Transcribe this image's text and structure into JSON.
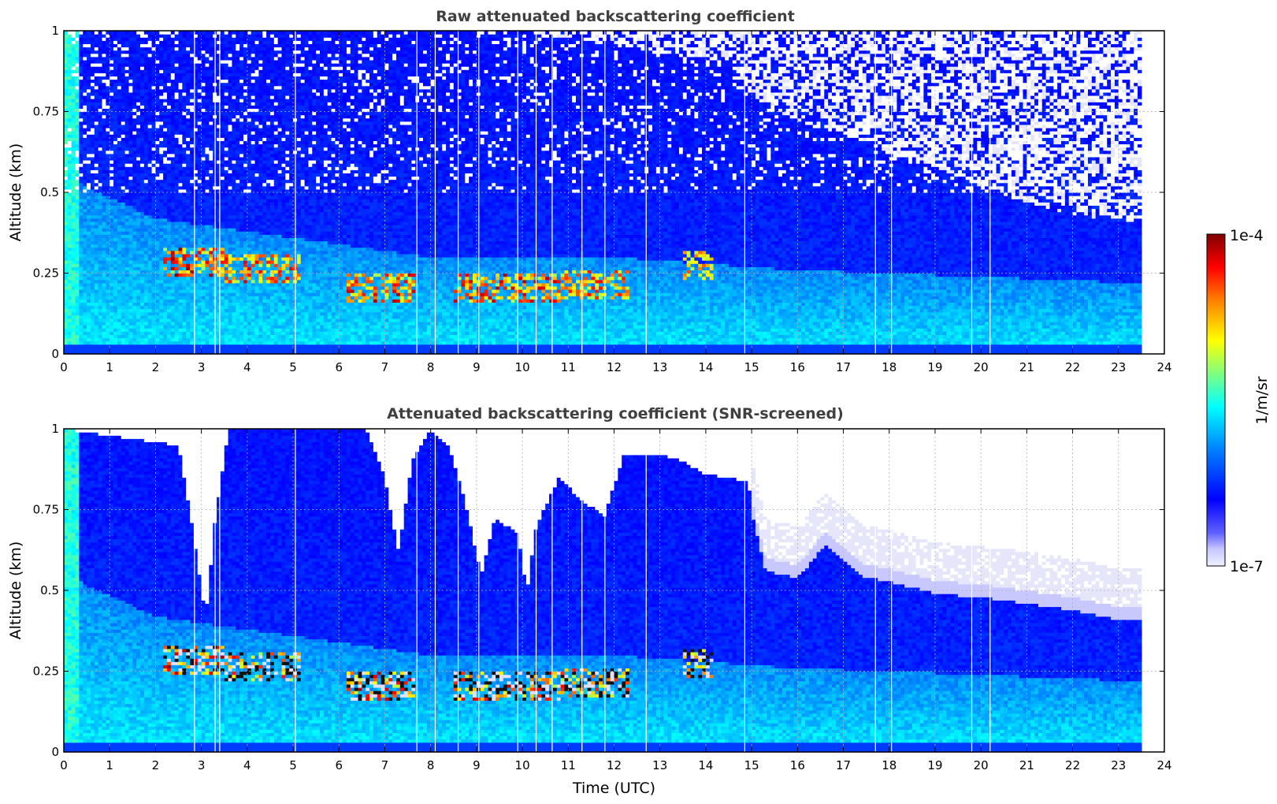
{
  "chart_data": [
    {
      "type": "heatmap",
      "title": "Raw attenuated backscattering coefficient",
      "xlabel": "",
      "ylabel": "Altitude (km)",
      "xlim": [
        0,
        24
      ],
      "ylim": [
        0,
        1
      ],
      "xticks": [
        0,
        1,
        2,
        3,
        4,
        5,
        6,
        7,
        8,
        9,
        10,
        11,
        12,
        13,
        14,
        15,
        16,
        17,
        18,
        19,
        20,
        21,
        22,
        23,
        24
      ],
      "yticks": [
        0,
        0.25,
        0.5,
        0.75,
        1
      ],
      "ytick_labels": [
        "0",
        "0.25",
        "0.5",
        "0.75",
        "1"
      ],
      "grid": true,
      "data_end_hour": 23.5,
      "noise_floor_top_km": [
        [
          0,
          1.0
        ],
        [
          10,
          1.0
        ],
        [
          14.5,
          0.9
        ],
        [
          15,
          0.8
        ],
        [
          16,
          0.72
        ],
        [
          17,
          0.68
        ],
        [
          18,
          0.62
        ],
        [
          19,
          0.58
        ],
        [
          20,
          0.52
        ],
        [
          21,
          0.47
        ],
        [
          22,
          0.43
        ],
        [
          23.5,
          0.41
        ]
      ],
      "aerosol_layer_top_km": [
        [
          0,
          0.55
        ],
        [
          2,
          0.42
        ],
        [
          4,
          0.38
        ],
        [
          6,
          0.34
        ],
        [
          8,
          0.3
        ],
        [
          10,
          0.3
        ],
        [
          12,
          0.3
        ],
        [
          14,
          0.28
        ],
        [
          16,
          0.26
        ],
        [
          18,
          0.25
        ],
        [
          20,
          0.24
        ],
        [
          23.5,
          0.22
        ]
      ],
      "strong_echo_layers": [
        {
          "start": 2.2,
          "end": 3.5,
          "altitude_km": 0.28,
          "level": 1.0
        },
        {
          "start": 3.5,
          "end": 5.2,
          "altitude_km": 0.26,
          "level": 0.8
        },
        {
          "start": 6.2,
          "end": 7.7,
          "altitude_km": 0.2,
          "level": 0.9
        },
        {
          "start": 8.5,
          "end": 10.8,
          "altitude_km": 0.2,
          "level": 0.9
        },
        {
          "start": 10.8,
          "end": 12.3,
          "altitude_km": 0.22,
          "level": 0.75
        },
        {
          "start": 13.5,
          "end": 14.2,
          "altitude_km": 0.27,
          "level": 0.6
        }
      ],
      "data_gaps_hour": [
        2.85,
        3.3,
        3.4,
        5.05,
        7.7,
        8.1,
        8.6,
        9.05,
        9.9,
        10.3,
        10.65,
        11.3,
        11.8,
        12.7,
        14.85,
        17.7,
        18.05,
        19.8,
        20.2
      ]
    },
    {
      "type": "heatmap",
      "title": "Attenuated backscattering coefficient (SNR-screened)",
      "xlabel": "Time (UTC)",
      "ylabel": "Altitude (km)",
      "xlim": [
        0,
        24
      ],
      "ylim": [
        0,
        1
      ],
      "xticks": [
        0,
        1,
        2,
        3,
        4,
        5,
        6,
        7,
        8,
        9,
        10,
        11,
        12,
        13,
        14,
        15,
        16,
        17,
        18,
        19,
        20,
        21,
        22,
        23,
        24
      ],
      "yticks": [
        0,
        0.25,
        0.5,
        0.75,
        1
      ],
      "ytick_labels": [
        "0",
        "0.25",
        "0.5",
        "0.75",
        "1"
      ],
      "grid": true,
      "data_end_hour": 23.5,
      "screened_top_km": [
        [
          0,
          1.0
        ],
        [
          2.5,
          0.95
        ],
        [
          2.8,
          0.7
        ],
        [
          3.1,
          0.42
        ],
        [
          3.3,
          0.72
        ],
        [
          3.6,
          1.0
        ],
        [
          6.6,
          1.0
        ],
        [
          7.0,
          0.85
        ],
        [
          7.3,
          0.62
        ],
        [
          7.6,
          0.9
        ],
        [
          8.0,
          1.0
        ],
        [
          8.4,
          0.95
        ],
        [
          8.8,
          0.75
        ],
        [
          9.1,
          0.55
        ],
        [
          9.4,
          0.72
        ],
        [
          9.9,
          0.68
        ],
        [
          10.1,
          0.5
        ],
        [
          10.3,
          0.7
        ],
        [
          10.8,
          0.85
        ],
        [
          11.3,
          0.78
        ],
        [
          11.8,
          0.73
        ],
        [
          12.2,
          0.92
        ],
        [
          13.0,
          0.92
        ],
        [
          13.5,
          0.9
        ],
        [
          14.0,
          0.86
        ],
        [
          14.9,
          0.84
        ],
        [
          15.3,
          0.6
        ],
        [
          16.0,
          0.58
        ],
        [
          16.6,
          0.68
        ],
        [
          17.1,
          0.62
        ],
        [
          17.5,
          0.58
        ],
        [
          18.0,
          0.57
        ],
        [
          19.0,
          0.53
        ],
        [
          20.0,
          0.52
        ],
        [
          21.0,
          0.5
        ],
        [
          22.0,
          0.48
        ],
        [
          23.0,
          0.45
        ],
        [
          23.5,
          0.45
        ]
      ],
      "data_gaps_hour": [
        2.85,
        3.3,
        3.4,
        5.05,
        7.7,
        8.1,
        8.6,
        9.05,
        9.9,
        10.3,
        10.65,
        11.3,
        11.8,
        12.7,
        14.85,
        17.7,
        18.05,
        19.8,
        20.2
      ]
    }
  ],
  "colorbar": {
    "label": "1/m/sr",
    "max_label": "1e-4",
    "min_label": "1e-7",
    "colormap": [
      "#e6e6fa",
      "#0000ff",
      "#0080ff",
      "#00ffff",
      "#80ff80",
      "#ffff00",
      "#ff8000",
      "#ff0000",
      "#800000"
    ]
  }
}
